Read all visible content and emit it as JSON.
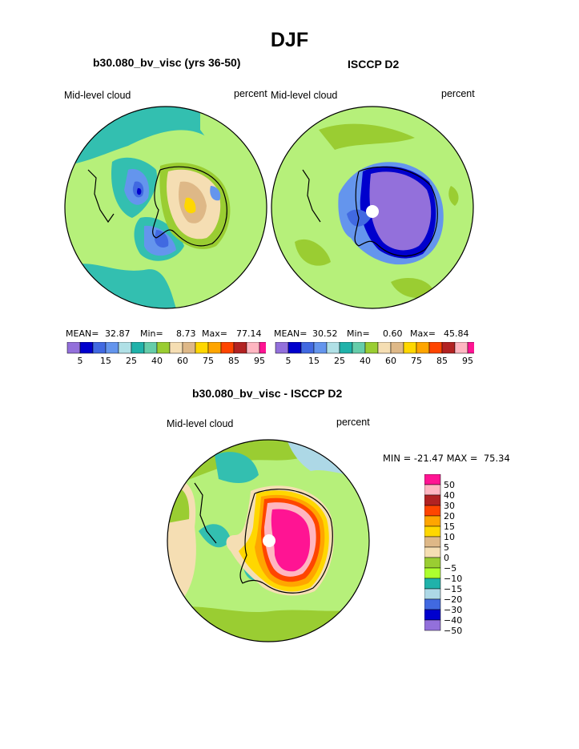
{
  "page_title": "DJF",
  "panels": [
    {
      "title": "b30.080_bv_visc (yrs 36-50)",
      "left_label": "Mid-level cloud",
      "right_label": "percent",
      "stats": {
        "mean_label": "MEAN=",
        "mean": "32.87",
        "min_label": "Min=",
        "min": "8.73",
        "max_label": "Max=",
        "max": "77.14"
      }
    },
    {
      "title": "ISCCP D2",
      "left_label": "Mid-level cloud",
      "right_label": "percent",
      "stats": {
        "mean_label": "MEAN=",
        "mean": "30.52",
        "min_label": "Min=",
        "min": "0.60",
        "max_label": "Max=",
        "max": "45.84"
      }
    },
    {
      "title": "b30.080_bv_visc - ISCCP D2",
      "left_label": "Mid-level cloud",
      "right_label": "percent",
      "minmax": "MIN = -21.47 MAX =  75.34"
    }
  ],
  "chart_data": [
    {
      "type": "heatmap",
      "title": "b30.080_bv_visc (yrs 36-50)",
      "projection": "south polar stereographic",
      "variable": "Mid-level cloud",
      "units": "percent",
      "stats": {
        "mean": 32.87,
        "min": 8.73,
        "max": 77.14
      },
      "colorbar": {
        "levels": [
          5,
          10,
          15,
          20,
          25,
          30,
          40,
          50,
          60,
          70,
          75,
          80,
          85,
          90,
          95
        ],
        "tick_labels": [
          "5",
          "15",
          "25",
          "40",
          "60",
          "75",
          "85",
          "95"
        ],
        "colors": [
          "#9370db",
          "#0000cd",
          "#4169e1",
          "#6495ed",
          "#b0e0e6",
          "#20b2aa",
          "#66cdaa",
          "#9acd32",
          "#f5deb3",
          "#deb887",
          "#ffd700",
          "#ffa500",
          "#ff4500",
          "#b22222",
          "#ffb6c1",
          "#ff1493"
        ]
      }
    },
    {
      "type": "heatmap",
      "title": "ISCCP D2",
      "projection": "south polar stereographic",
      "variable": "Mid-level cloud",
      "units": "percent",
      "stats": {
        "mean": 30.52,
        "min": 0.6,
        "max": 45.84
      },
      "colorbar": {
        "levels": [
          5,
          10,
          15,
          20,
          25,
          30,
          40,
          50,
          60,
          70,
          75,
          80,
          85,
          90,
          95
        ],
        "tick_labels": [
          "5",
          "15",
          "25",
          "40",
          "60",
          "75",
          "85",
          "95"
        ],
        "colors": [
          "#9370db",
          "#0000cd",
          "#4169e1",
          "#6495ed",
          "#b0e0e6",
          "#20b2aa",
          "#66cdaa",
          "#9acd32",
          "#f5deb3",
          "#deb887",
          "#ffd700",
          "#ffa500",
          "#ff4500",
          "#b22222",
          "#ffb6c1",
          "#ff1493"
        ]
      }
    },
    {
      "type": "heatmap",
      "title": "b30.080_bv_visc - ISCCP D2",
      "projection": "south polar stereographic",
      "variable": "Mid-level cloud",
      "units": "percent",
      "stats": {
        "min": -21.47,
        "max": 75.34
      },
      "colorbar": {
        "orientation": "vertical",
        "levels": [
          50,
          40,
          30,
          20,
          15,
          10,
          5,
          0,
          -5,
          -10,
          -15,
          -20,
          -30,
          -40,
          -50
        ],
        "tick_labels": [
          "50",
          "40",
          "30",
          "20",
          "15",
          "10",
          "5",
          "0",
          "−5",
          "−10",
          "−15",
          "−20",
          "−30",
          "−40",
          "−50"
        ],
        "colors": [
          "#ff1493",
          "#ffb6c1",
          "#b22222",
          "#ff4500",
          "#ffa500",
          "#ffd700",
          "#deb887",
          "#f5deb3",
          "#9acd32",
          "#adff2f",
          "#20b2aa",
          "#add8e6",
          "#4169e1",
          "#0000cd",
          "#9370db"
        ]
      }
    }
  ]
}
